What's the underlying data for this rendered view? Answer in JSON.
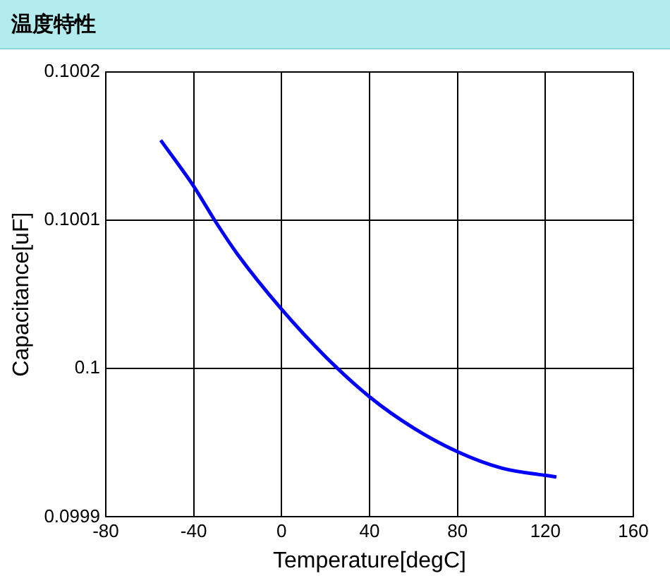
{
  "chart_data": {
    "type": "line",
    "title": "温度特性",
    "xlabel": "Temperature[degC]",
    "ylabel": "Capacitance[uF]",
    "xlim": [
      -80,
      160
    ],
    "xticks": [
      -80,
      -40,
      0,
      40,
      80,
      120,
      160
    ],
    "ylim": [
      0.0999,
      0.1002
    ],
    "yticks": [
      0.0999,
      0.1,
      0.1001,
      0.1002
    ],
    "grid": true,
    "legend": false,
    "marker": "none",
    "line_style": "solid",
    "series": [
      {
        "color": "#0000ff",
        "x": [
          -55,
          -40,
          -30,
          -20,
          0,
          20,
          40,
          60,
          80,
          100,
          120,
          125
        ],
        "values": [
          0.100154,
          0.100123,
          0.100099,
          0.100077,
          0.10004,
          0.100008,
          0.099981,
          0.09996,
          0.099944,
          0.099933,
          0.099928,
          0.099927
        ]
      }
    ]
  }
}
